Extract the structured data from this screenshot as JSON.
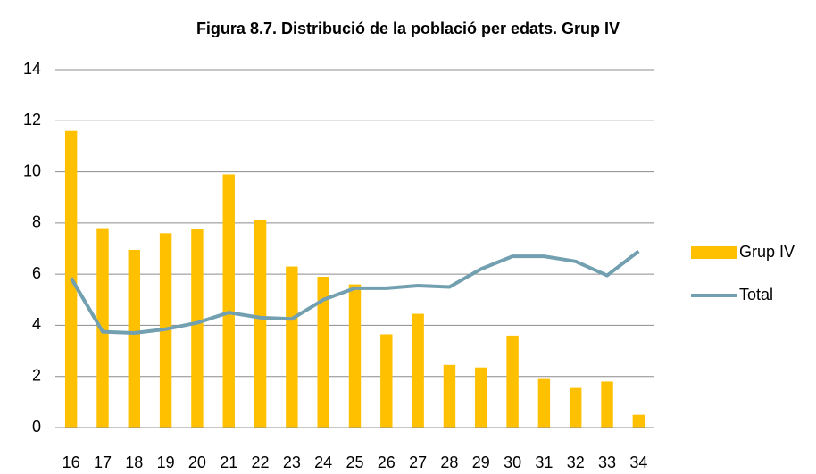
{
  "chart_data": {
    "type": "bar",
    "title": "Figura 8.7. Distribució de la població per edats. Grup IV",
    "categories": [
      "16",
      "17",
      "18",
      "19",
      "20",
      "21",
      "22",
      "23",
      "24",
      "25",
      "26",
      "27",
      "28",
      "29",
      "30",
      "31",
      "32",
      "33",
      "34"
    ],
    "series": [
      {
        "name": "Grup IV",
        "type": "bar",
        "color": "#ffc000",
        "values": [
          11.6,
          7.8,
          6.95,
          7.6,
          7.75,
          9.9,
          8.1,
          6.3,
          5.9,
          5.6,
          3.65,
          4.45,
          2.45,
          2.35,
          3.6,
          1.9,
          1.55,
          1.8,
          0.5
        ]
      },
      {
        "name": "Total",
        "type": "line",
        "color": "#72a0b0",
        "values": [
          5.85,
          3.75,
          3.7,
          3.85,
          4.1,
          4.5,
          4.3,
          4.25,
          5.0,
          5.45,
          5.45,
          5.55,
          5.5,
          6.2,
          6.7,
          6.7,
          6.5,
          5.95,
          6.9
        ]
      }
    ],
    "ylim": [
      0,
      14
    ],
    "yticks": [
      0,
      2,
      4,
      6,
      8,
      10,
      12,
      14
    ],
    "grid": true,
    "legend": "right"
  }
}
